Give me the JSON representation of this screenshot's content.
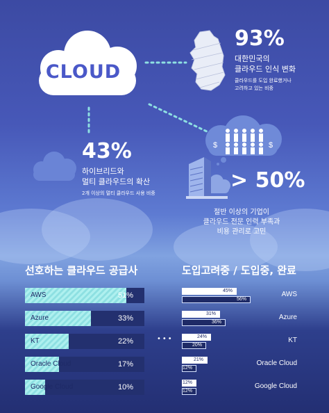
{
  "cloud": {
    "label": "CLOUD"
  },
  "stat_korea": {
    "pct": "93%",
    "title_line1": "대한민국의",
    "title_line2": "클라우드 인식 변화",
    "desc_line1": "클라우드를 도입 완료했거나",
    "desc_line2": "고려하고 있는 비중",
    "value": 93
  },
  "stat_hybrid": {
    "pct": "43%",
    "title_line1": "하이브리드와",
    "title_line2": "멀티 클라우드의 확산",
    "desc": "2개 이상의 멀티 클라우드 사용 비중",
    "value": 43
  },
  "stat_company": {
    "pct": "> 50%",
    "line1": "절반 이상의 기업이",
    "line2": "클라우드 전문 인력 부족과",
    "line3": "비용 관리로 고민",
    "value": 50
  },
  "left_section": {
    "title": "선호하는 클라우드 공급사",
    "items": [
      {
        "name": "AWS",
        "value": 51,
        "label": "51%"
      },
      {
        "name": "Azure",
        "value": 33,
        "label": "33%"
      },
      {
        "name": "KT",
        "value": 22,
        "label": "22%"
      },
      {
        "name": "Oracle Cloud",
        "value": 17,
        "label": "17%"
      },
      {
        "name": "Google Cloud",
        "value": 10,
        "label": "10%"
      }
    ]
  },
  "right_section": {
    "title": "도입고려중 / 도입중, 완료",
    "items": [
      {
        "name": "AWS",
        "considering": 45,
        "considering_label": "45%",
        "adopted": 56,
        "adopted_label": "56%"
      },
      {
        "name": "Azure",
        "considering": 31,
        "considering_label": "31%",
        "adopted": 36,
        "adopted_label": "36%"
      },
      {
        "name": "KT",
        "considering": 24,
        "considering_label": "24%",
        "adopted": 20,
        "adopted_label": "20%"
      },
      {
        "name": "Oracle Cloud",
        "considering": 21,
        "considering_label": "21%",
        "adopted": 12,
        "adopted_label": "12%"
      },
      {
        "name": "Google Cloud",
        "considering": 12,
        "considering_label": "12%",
        "adopted": 12,
        "adopted_label": "12%"
      }
    ]
  },
  "middle_dots": "•••",
  "colors": {
    "accent_cyan": "#8ee0e2",
    "bar_bg": "#23306f",
    "cloud_text": "#4a58c8"
  }
}
